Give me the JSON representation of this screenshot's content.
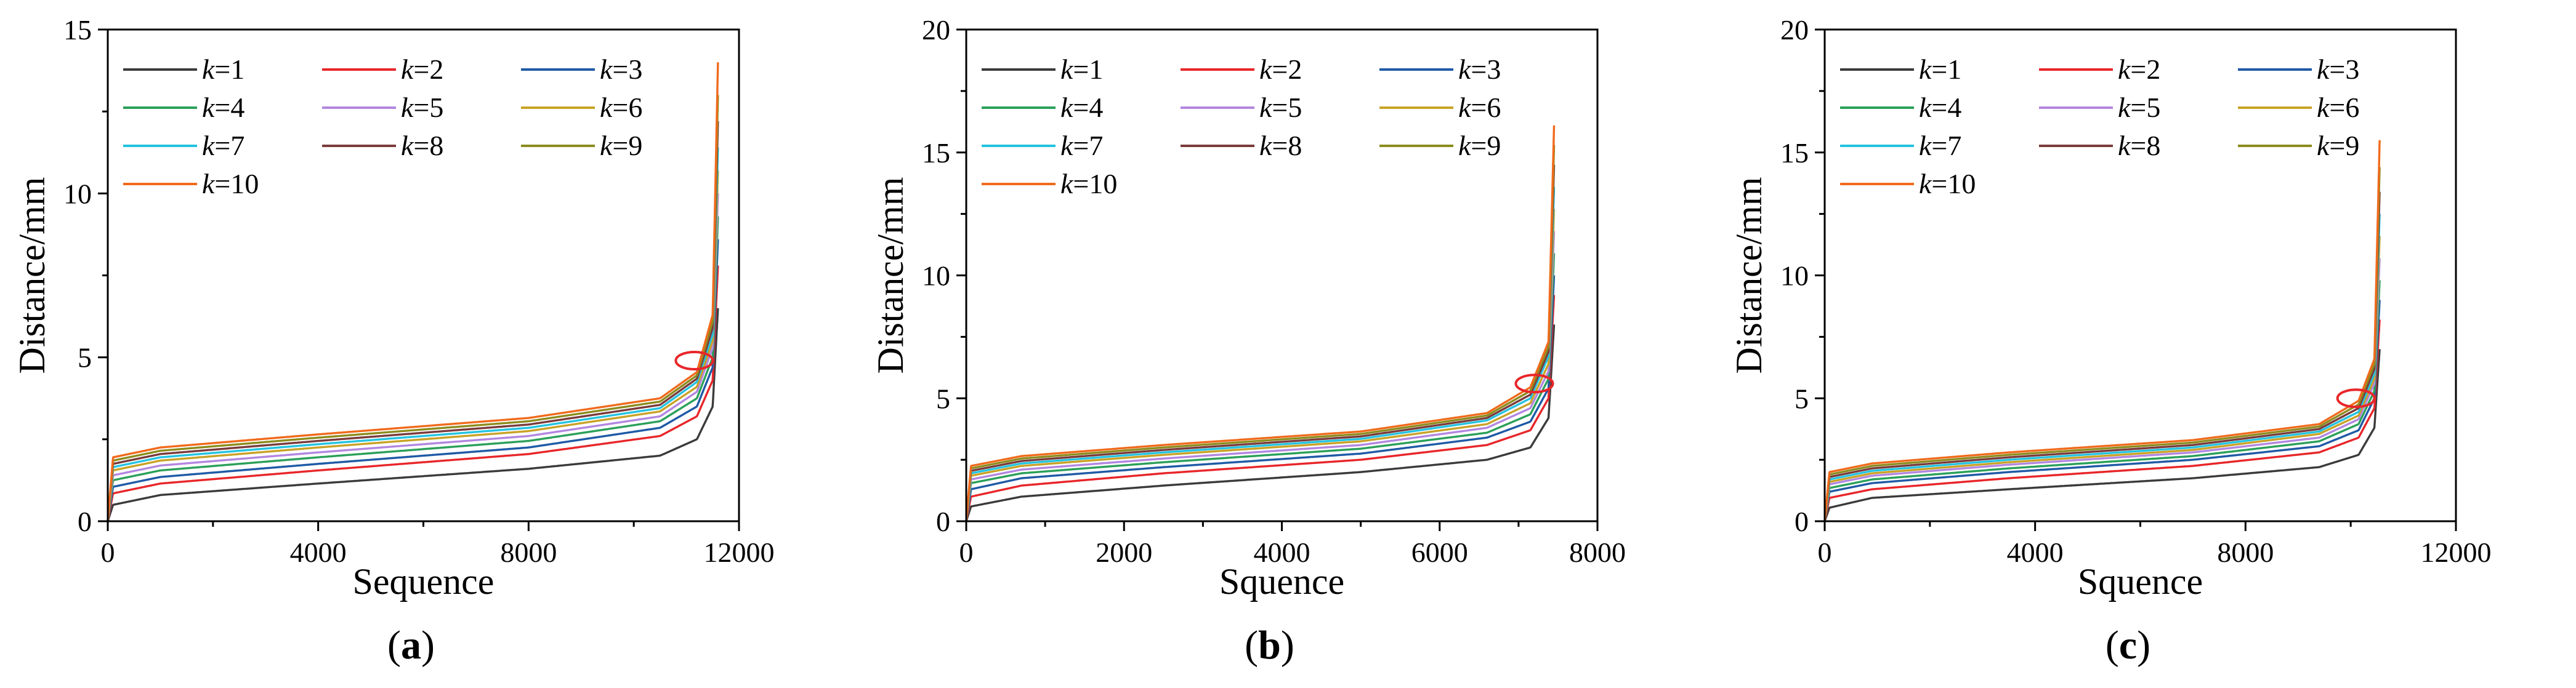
{
  "figure": {
    "panels": [
      "a",
      "b",
      "c"
    ]
  },
  "chart_data": [
    {
      "type": "line",
      "caption": "(a)",
      "caption_letter": "a",
      "xlabel": "Sequence",
      "ylabel": "Distance/mm",
      "xlim": [
        0,
        12000
      ],
      "ylim": [
        0,
        15
      ],
      "xticks": [
        0,
        4000,
        8000,
        12000
      ],
      "xticklabels": [
        "0",
        "4000",
        "8000",
        "12000"
      ],
      "yticks": [
        0,
        5,
        10,
        15
      ],
      "yticklabels": [
        "0",
        "5",
        "10",
        "15"
      ],
      "legend_position": "top-left",
      "n_points": 11600,
      "marker": {
        "shape": "ellipse",
        "x": 11150,
        "y": 4.9,
        "color": "#e8262a"
      },
      "series": [
        {
          "name": "k=1",
          "k": "k",
          "eq": "=1",
          "color": "#3b3b3b",
          "x": [
            0,
            100,
            1000,
            4000,
            8000,
            10500,
            11200,
            11500,
            11600
          ],
          "y": [
            0,
            0.5,
            0.8,
            1.15,
            1.6,
            2.0,
            2.5,
            3.5,
            6.5
          ]
        },
        {
          "name": "k=2",
          "k": "k",
          "eq": "=2",
          "color": "#e8262a",
          "x": [
            0,
            100,
            1000,
            4000,
            8000,
            10500,
            11200,
            11500,
            11600
          ],
          "y": [
            0,
            0.85,
            1.15,
            1.55,
            2.05,
            2.6,
            3.2,
            4.3,
            7.8
          ]
        },
        {
          "name": "k=3",
          "k": "k",
          "eq": "=3",
          "color": "#1f5aa6",
          "x": [
            0,
            100,
            1000,
            4000,
            8000,
            10500,
            11200,
            11500,
            11600
          ],
          "y": [
            0,
            1.05,
            1.35,
            1.75,
            2.25,
            2.85,
            3.5,
            4.7,
            8.6
          ]
        },
        {
          "name": "k=4",
          "k": "k",
          "eq": "=4",
          "color": "#2ba05a",
          "x": [
            0,
            100,
            1000,
            4000,
            8000,
            10500,
            11200,
            11500,
            11600
          ],
          "y": [
            0,
            1.25,
            1.55,
            1.95,
            2.45,
            3.05,
            3.75,
            5.0,
            9.3
          ]
        },
        {
          "name": "k=5",
          "k": "k",
          "eq": "=5",
          "color": "#b287e0",
          "x": [
            0,
            100,
            1000,
            4000,
            8000,
            10500,
            11200,
            11500,
            11600
          ],
          "y": [
            0,
            1.4,
            1.7,
            2.1,
            2.6,
            3.2,
            3.95,
            5.3,
            10.0
          ]
        },
        {
          "name": "k=6",
          "k": "k",
          "eq": "=6",
          "color": "#c9a227",
          "x": [
            0,
            100,
            1000,
            4000,
            8000,
            10500,
            11200,
            11500,
            11600
          ],
          "y": [
            0,
            1.55,
            1.85,
            2.25,
            2.75,
            3.35,
            4.1,
            5.5,
            10.7
          ]
        },
        {
          "name": "k=7",
          "k": "k",
          "eq": "=7",
          "color": "#24c3e0",
          "x": [
            0,
            100,
            1000,
            4000,
            8000,
            10500,
            11200,
            11500,
            11600
          ],
          "y": [
            0,
            1.65,
            1.95,
            2.35,
            2.85,
            3.45,
            4.25,
            5.7,
            11.4
          ]
        },
        {
          "name": "k=8",
          "k": "k",
          "eq": "=8",
          "color": "#7a3b3b",
          "x": [
            0,
            100,
            1000,
            4000,
            8000,
            10500,
            11200,
            11500,
            11600
          ],
          "y": [
            0,
            1.75,
            2.05,
            2.45,
            2.95,
            3.55,
            4.35,
            5.9,
            12.2
          ]
        },
        {
          "name": "k=9",
          "k": "k",
          "eq": "=9",
          "color": "#8c8c1e",
          "x": [
            0,
            100,
            1000,
            4000,
            8000,
            10500,
            11200,
            11500,
            11600
          ],
          "y": [
            0,
            1.85,
            2.15,
            2.55,
            3.05,
            3.65,
            4.45,
            6.1,
            13.0
          ]
        },
        {
          "name": "k=10",
          "k": "k",
          "eq": "=10",
          "color": "#f06a1c",
          "x": [
            0,
            100,
            1000,
            4000,
            8000,
            10500,
            11200,
            11500,
            11600
          ],
          "y": [
            0,
            1.95,
            2.25,
            2.65,
            3.15,
            3.75,
            4.55,
            6.3,
            14.0
          ]
        }
      ]
    },
    {
      "type": "line",
      "caption": "(b)",
      "caption_letter": "b",
      "xlabel": "Squence",
      "ylabel": "Distance/mm",
      "xlim": [
        0,
        8000
      ],
      "ylim": [
        0,
        20
      ],
      "xticks": [
        0,
        2000,
        4000,
        6000,
        8000
      ],
      "xticklabels": [
        "0",
        "2000",
        "4000",
        "6000",
        "8000"
      ],
      "yticks": [
        0,
        5,
        10,
        15,
        20
      ],
      "yticklabels": [
        "0",
        "5",
        "10",
        "15",
        "20"
      ],
      "legend_position": "top-left",
      "n_points": 7450,
      "marker": {
        "shape": "ellipse",
        "x": 7200,
        "y": 5.6,
        "color": "#e8262a"
      },
      "series": [
        {
          "name": "k=1",
          "k": "k",
          "eq": "=1",
          "color": "#3b3b3b",
          "x": [
            0,
            60,
            700,
            2500,
            5000,
            6600,
            7150,
            7380,
            7450
          ],
          "y": [
            0,
            0.6,
            1.0,
            1.45,
            2.0,
            2.5,
            3.0,
            4.2,
            8.0
          ]
        },
        {
          "name": "k=2",
          "k": "k",
          "eq": "=2",
          "color": "#e8262a",
          "x": [
            0,
            60,
            700,
            2500,
            5000,
            6600,
            7150,
            7380,
            7450
          ],
          "y": [
            0,
            1.0,
            1.45,
            1.95,
            2.5,
            3.1,
            3.7,
            5.0,
            9.2
          ]
        },
        {
          "name": "k=3",
          "k": "k",
          "eq": "=3",
          "color": "#1f5aa6",
          "x": [
            0,
            60,
            700,
            2500,
            5000,
            6600,
            7150,
            7380,
            7450
          ],
          "y": [
            0,
            1.3,
            1.75,
            2.2,
            2.75,
            3.4,
            4.05,
            5.4,
            10.0
          ]
        },
        {
          "name": "k=4",
          "k": "k",
          "eq": "=4",
          "color": "#2ba05a",
          "x": [
            0,
            60,
            700,
            2500,
            5000,
            6600,
            7150,
            7380,
            7450
          ],
          "y": [
            0,
            1.55,
            1.95,
            2.4,
            2.95,
            3.6,
            4.35,
            5.8,
            10.9
          ]
        },
        {
          "name": "k=5",
          "k": "k",
          "eq": "=5",
          "color": "#b287e0",
          "x": [
            0,
            60,
            700,
            2500,
            5000,
            6600,
            7150,
            7380,
            7450
          ],
          "y": [
            0,
            1.7,
            2.1,
            2.55,
            3.1,
            3.8,
            4.6,
            6.1,
            11.8
          ]
        },
        {
          "name": "k=6",
          "k": "k",
          "eq": "=6",
          "color": "#c9a227",
          "x": [
            0,
            60,
            700,
            2500,
            5000,
            6600,
            7150,
            7380,
            7450
          ],
          "y": [
            0,
            1.85,
            2.25,
            2.7,
            3.25,
            3.95,
            4.8,
            6.4,
            12.7
          ]
        },
        {
          "name": "k=7",
          "k": "k",
          "eq": "=7",
          "color": "#24c3e0",
          "x": [
            0,
            60,
            700,
            2500,
            5000,
            6600,
            7150,
            7380,
            7450
          ],
          "y": [
            0,
            1.95,
            2.35,
            2.8,
            3.35,
            4.1,
            5.0,
            6.7,
            13.6
          ]
        },
        {
          "name": "k=8",
          "k": "k",
          "eq": "=8",
          "color": "#7a3b3b",
          "x": [
            0,
            60,
            700,
            2500,
            5000,
            6600,
            7150,
            7380,
            7450
          ],
          "y": [
            0,
            2.05,
            2.45,
            2.9,
            3.45,
            4.2,
            5.15,
            6.9,
            14.5
          ]
        },
        {
          "name": "k=9",
          "k": "k",
          "eq": "=9",
          "color": "#8c8c1e",
          "x": [
            0,
            60,
            700,
            2500,
            5000,
            6600,
            7150,
            7380,
            7450
          ],
          "y": [
            0,
            2.15,
            2.55,
            3.0,
            3.55,
            4.3,
            5.3,
            7.1,
            15.3
          ]
        },
        {
          "name": "k=10",
          "k": "k",
          "eq": "=10",
          "color": "#f06a1c",
          "x": [
            0,
            60,
            700,
            2500,
            5000,
            6600,
            7150,
            7380,
            7450
          ],
          "y": [
            0,
            2.25,
            2.65,
            3.1,
            3.65,
            4.4,
            5.45,
            7.3,
            16.1
          ]
        }
      ]
    },
    {
      "type": "line",
      "caption": "(c)",
      "caption_letter": "c",
      "xlabel": "Squence",
      "ylabel": "Distance/mm",
      "xlim": [
        0,
        12000
      ],
      "ylim": [
        0,
        20
      ],
      "xticks": [
        0,
        4000,
        8000,
        12000
      ],
      "xticklabels": [
        "0",
        "4000",
        "8000",
        "12000"
      ],
      "yticks": [
        0,
        5,
        10,
        15,
        20
      ],
      "yticklabels": [
        "0",
        "5",
        "10",
        "15",
        "20"
      ],
      "legend_position": "top-left",
      "n_points": 10550,
      "marker": {
        "shape": "ellipse",
        "x": 10100,
        "y": 5.0,
        "color": "#e8262a"
      },
      "series": [
        {
          "name": "k=1",
          "k": "k",
          "eq": "=1",
          "color": "#3b3b3b",
          "x": [
            0,
            90,
            900,
            3500,
            7000,
            9400,
            10150,
            10450,
            10550
          ],
          "y": [
            0,
            0.55,
            0.95,
            1.3,
            1.75,
            2.2,
            2.7,
            3.8,
            7.0
          ]
        },
        {
          "name": "k=2",
          "k": "k",
          "eq": "=2",
          "color": "#e8262a",
          "x": [
            0,
            90,
            900,
            3500,
            7000,
            9400,
            10150,
            10450,
            10550
          ],
          "y": [
            0,
            0.95,
            1.3,
            1.75,
            2.25,
            2.8,
            3.4,
            4.6,
            8.2
          ]
        },
        {
          "name": "k=3",
          "k": "k",
          "eq": "=3",
          "color": "#1f5aa6",
          "x": [
            0,
            90,
            900,
            3500,
            7000,
            9400,
            10150,
            10450,
            10550
          ],
          "y": [
            0,
            1.2,
            1.55,
            2.0,
            2.5,
            3.05,
            3.7,
            5.0,
            9.0
          ]
        },
        {
          "name": "k=4",
          "k": "k",
          "eq": "=4",
          "color": "#2ba05a",
          "x": [
            0,
            90,
            900,
            3500,
            7000,
            9400,
            10150,
            10450,
            10550
          ],
          "y": [
            0,
            1.35,
            1.7,
            2.15,
            2.65,
            3.25,
            3.95,
            5.3,
            9.8
          ]
        },
        {
          "name": "k=5",
          "k": "k",
          "eq": "=5",
          "color": "#b287e0",
          "x": [
            0,
            90,
            900,
            3500,
            7000,
            9400,
            10150,
            10450,
            10550
          ],
          "y": [
            0,
            1.5,
            1.85,
            2.3,
            2.8,
            3.4,
            4.15,
            5.6,
            10.7
          ]
        },
        {
          "name": "k=6",
          "k": "k",
          "eq": "=6",
          "color": "#c9a227",
          "x": [
            0,
            90,
            900,
            3500,
            7000,
            9400,
            10150,
            10450,
            10550
          ],
          "y": [
            0,
            1.6,
            1.95,
            2.4,
            2.9,
            3.55,
            4.3,
            5.8,
            11.6
          ]
        },
        {
          "name": "k=7",
          "k": "k",
          "eq": "=7",
          "color": "#24c3e0",
          "x": [
            0,
            90,
            900,
            3500,
            7000,
            9400,
            10150,
            10450,
            10550
          ],
          "y": [
            0,
            1.7,
            2.05,
            2.5,
            3.0,
            3.65,
            4.45,
            6.0,
            12.5
          ]
        },
        {
          "name": "k=8",
          "k": "k",
          "eq": "=8",
          "color": "#7a3b3b",
          "x": [
            0,
            90,
            900,
            3500,
            7000,
            9400,
            10150,
            10450,
            10550
          ],
          "y": [
            0,
            1.8,
            2.15,
            2.6,
            3.1,
            3.75,
            4.6,
            6.2,
            13.4
          ]
        },
        {
          "name": "k=9",
          "k": "k",
          "eq": "=9",
          "color": "#8c8c1e",
          "x": [
            0,
            90,
            900,
            3500,
            7000,
            9400,
            10150,
            10450,
            10550
          ],
          "y": [
            0,
            1.9,
            2.25,
            2.7,
            3.2,
            3.85,
            4.75,
            6.4,
            14.4
          ]
        },
        {
          "name": "k=10",
          "k": "k",
          "eq": "=10",
          "color": "#f06a1c",
          "x": [
            0,
            90,
            900,
            3500,
            7000,
            9400,
            10150,
            10450,
            10550
          ],
          "y": [
            0,
            2.0,
            2.35,
            2.8,
            3.3,
            3.95,
            4.9,
            6.6,
            15.5
          ]
        }
      ]
    }
  ]
}
